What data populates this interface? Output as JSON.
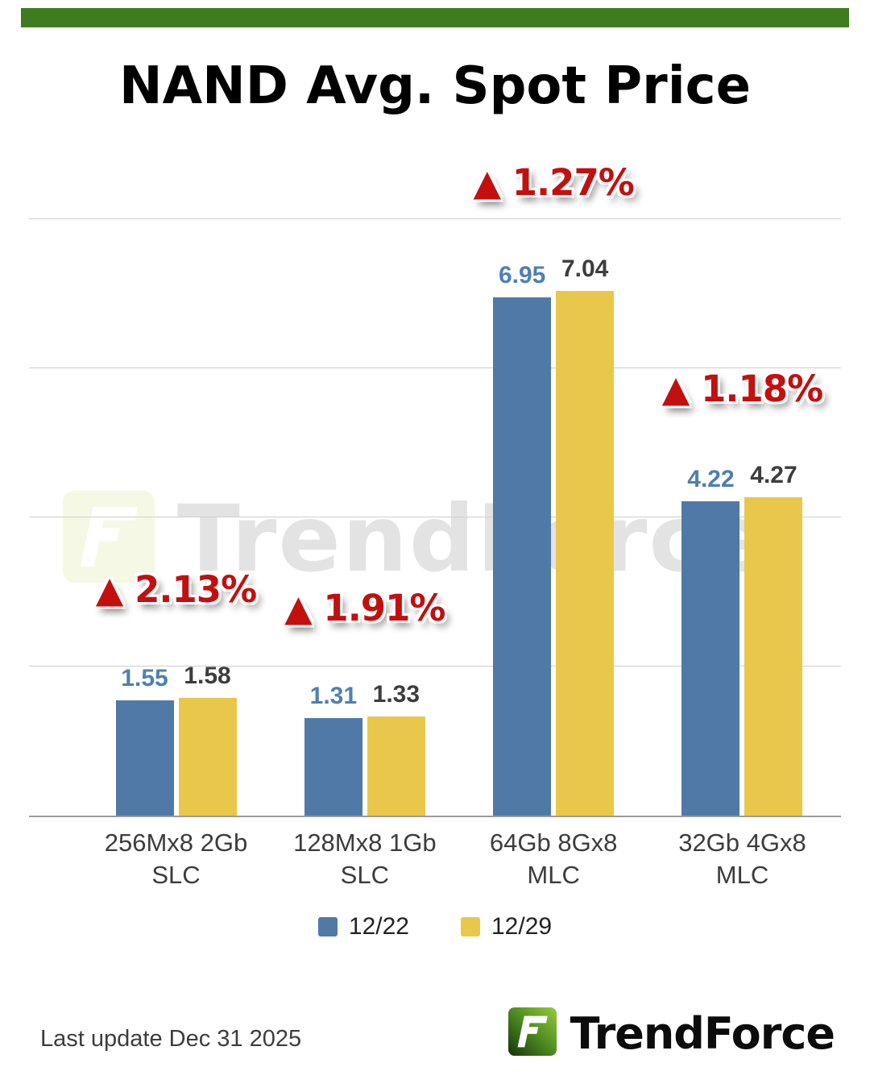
{
  "header": {
    "title": "NAND Avg. Spot Price"
  },
  "chart_data": {
    "type": "bar",
    "categories": [
      [
        "256Mx8 2Gb",
        "SLC"
      ],
      [
        "128Mx8 1Gb",
        "SLC"
      ],
      [
        "64Gb 8Gx8 MLC"
      ],
      [
        "32Gb 4Gx8 MLC"
      ]
    ],
    "series": [
      {
        "name": "12/22",
        "color": "#5079a8",
        "values": [
          1.55,
          1.31,
          6.95,
          4.22
        ]
      },
      {
        "name": "12/29",
        "color": "#e9c74b",
        "values": [
          1.58,
          1.33,
          7.04,
          4.27
        ]
      }
    ],
    "change_labels": [
      "▲ 2.13%",
      "▲ 1.91%",
      "▲ 1.27%",
      "▲ 1.18%"
    ],
    "change_color": "#c40f0f",
    "value_label_colors": [
      "#4d7fb5",
      "#3d3d3d"
    ],
    "title": "NAND Avg. Spot Price",
    "xlabel": "",
    "ylabel": "",
    "ylim": [
      0,
      8
    ],
    "gridlines": [
      2,
      4,
      6,
      8
    ],
    "grid": true,
    "legend_position": "bottom"
  },
  "watermark": {
    "text": "TrendForce"
  },
  "footer": {
    "last_update": "Last update Dec 31  2025",
    "brand": "TrendForce"
  },
  "accent": {
    "topbar_green": "#3e7c20",
    "logo_green": "#8ec63f"
  }
}
